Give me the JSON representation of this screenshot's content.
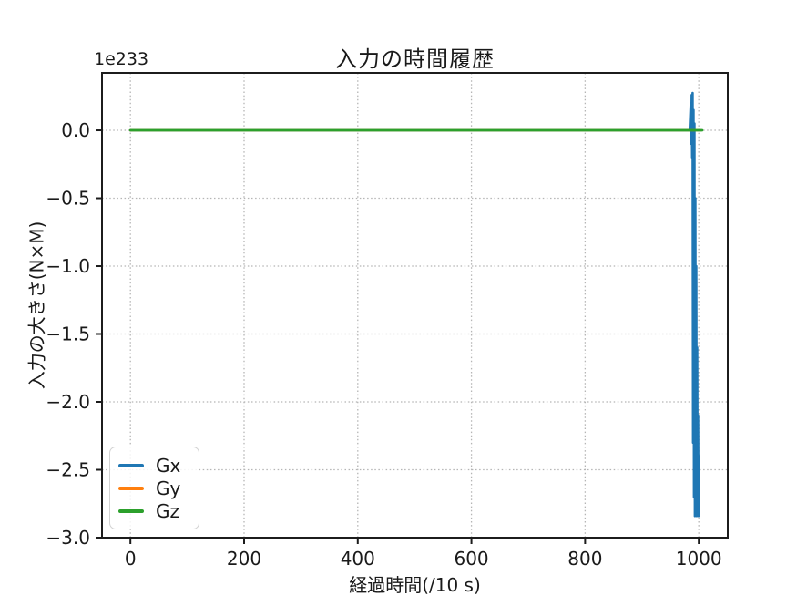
{
  "chart_data": {
    "type": "line",
    "title": "入力の時間履歴",
    "offset_label": "1e233",
    "xlabel": "経過時間(/10 s)",
    "ylabel": "入力の大きさ(N×M)",
    "xlim": [
      -50,
      1051
    ],
    "ylim": [
      -3.0,
      0.423
    ],
    "xticks": [
      0,
      200,
      400,
      600,
      800,
      1000
    ],
    "xtick_labels": [
      "0",
      "200",
      "400",
      "600",
      "800",
      "1000"
    ],
    "yticks": [
      0.0,
      -0.5,
      -1.0,
      -1.5,
      -2.0,
      -2.5,
      -3.0
    ],
    "ytick_labels": [
      "0.0",
      "−0.5",
      "−1.0",
      "−1.5",
      "−2.0",
      "−2.5",
      "−3.0"
    ],
    "grid": {
      "show": true,
      "style": "dotted",
      "color": "#b5b5b5"
    },
    "axes_color": "#1c1c1c",
    "tick_label_color": "#1a1a1a",
    "legend": {
      "position": "lower-left",
      "entries": [
        {
          "label": "Gx",
          "color": "#1f77b4"
        },
        {
          "label": "Gy",
          "color": "#ff7f0e"
        },
        {
          "label": "Gz",
          "color": "#2ca02c"
        }
      ]
    },
    "series": [
      {
        "name": "Gx",
        "color": "#1f77b4",
        "width": 2.6,
        "points": [
          [
            0,
            0
          ],
          [
            984,
            0
          ],
          [
            986,
            0.2
          ],
          [
            986.8,
            -0.1
          ],
          [
            987.6,
            0.26
          ],
          [
            988.4,
            -0.2
          ],
          [
            989.2,
            0.275
          ],
          [
            990,
            -2.3
          ],
          [
            990.8,
            0.15
          ],
          [
            991.6,
            -2.7
          ],
          [
            992.4,
            0.05
          ],
          [
            993.2,
            -2.84
          ],
          [
            994,
            -0.5
          ],
          [
            994.8,
            -2.8
          ],
          [
            995.6,
            -1.0
          ],
          [
            996.4,
            -2.84
          ],
          [
            997.2,
            -1.6
          ],
          [
            998,
            -2.83
          ],
          [
            998.8,
            -2.1
          ],
          [
            999.6,
            -2.84
          ],
          [
            1000.4,
            -2.4
          ],
          [
            1000.8,
            -2.82
          ]
        ]
      },
      {
        "name": "Gy",
        "color": "#ff7f0e",
        "width": 2.6,
        "points": [
          [
            0,
            0
          ],
          [
            1003,
            0
          ]
        ]
      },
      {
        "name": "Gz",
        "color": "#2ca02c",
        "width": 2.8,
        "points": [
          [
            0,
            0
          ],
          [
            1006,
            0
          ]
        ]
      }
    ]
  }
}
